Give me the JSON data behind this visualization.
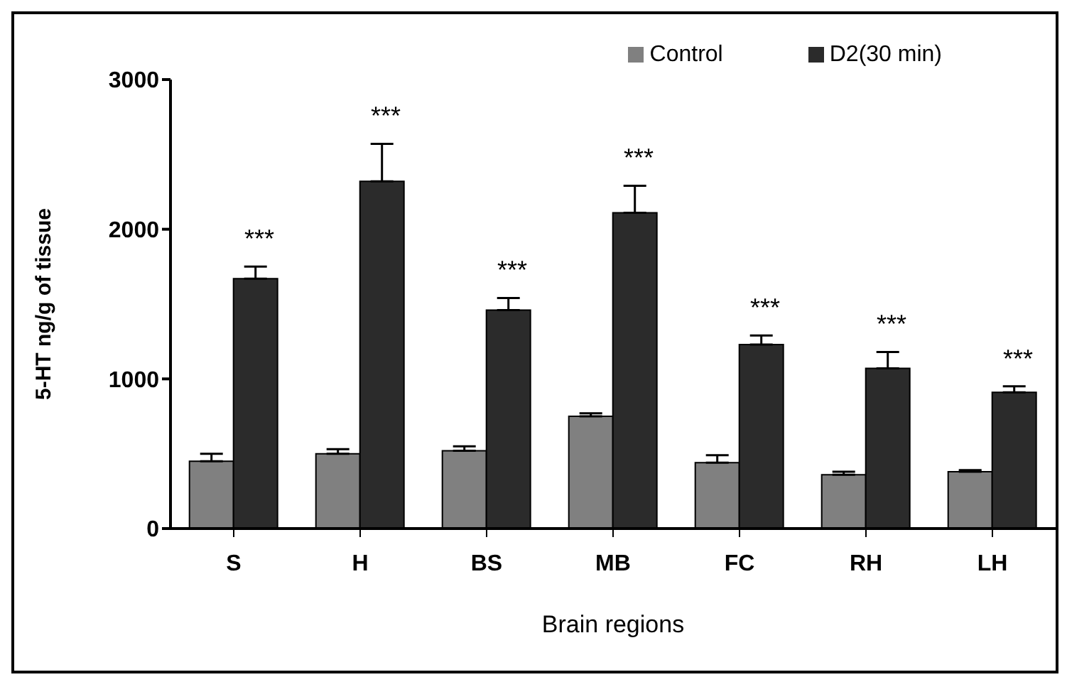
{
  "chart_data": {
    "type": "bar",
    "xlabel": "Brain regions",
    "ylabel": "5-HT ng/g  of  tissue",
    "categories": [
      "S",
      "H",
      "BS",
      "MB",
      "FC",
      "RH",
      "LH"
    ],
    "series": [
      {
        "name": "Control",
        "color": "#808080",
        "values": [
          450,
          500,
          520,
          750,
          440,
          360,
          380
        ],
        "errors": [
          [
            450,
            500
          ],
          [
            500,
            530
          ],
          [
            520,
            550
          ],
          [
            750,
            770
          ],
          [
            440,
            490
          ],
          [
            360,
            380
          ],
          [
            380,
            390
          ]
        ]
      },
      {
        "name": "D2(30 min)",
        "color": "#2b2b2b",
        "values": [
          1670,
          2320,
          1460,
          2110,
          1230,
          1070,
          910
        ],
        "errors": [
          [
            1670,
            1750
          ],
          [
            2320,
            2570
          ],
          [
            1460,
            1540
          ],
          [
            2110,
            2290
          ],
          [
            1230,
            1290
          ],
          [
            1070,
            1180
          ],
          [
            910,
            950
          ]
        ]
      }
    ],
    "annotations": [
      "***",
      "***",
      "***",
      "***",
      "***",
      "***",
      "***"
    ],
    "ylim": [
      0,
      3000
    ],
    "yticks": [
      0,
      1000,
      2000,
      3000
    ],
    "grid": false,
    "legend": "top right"
  }
}
